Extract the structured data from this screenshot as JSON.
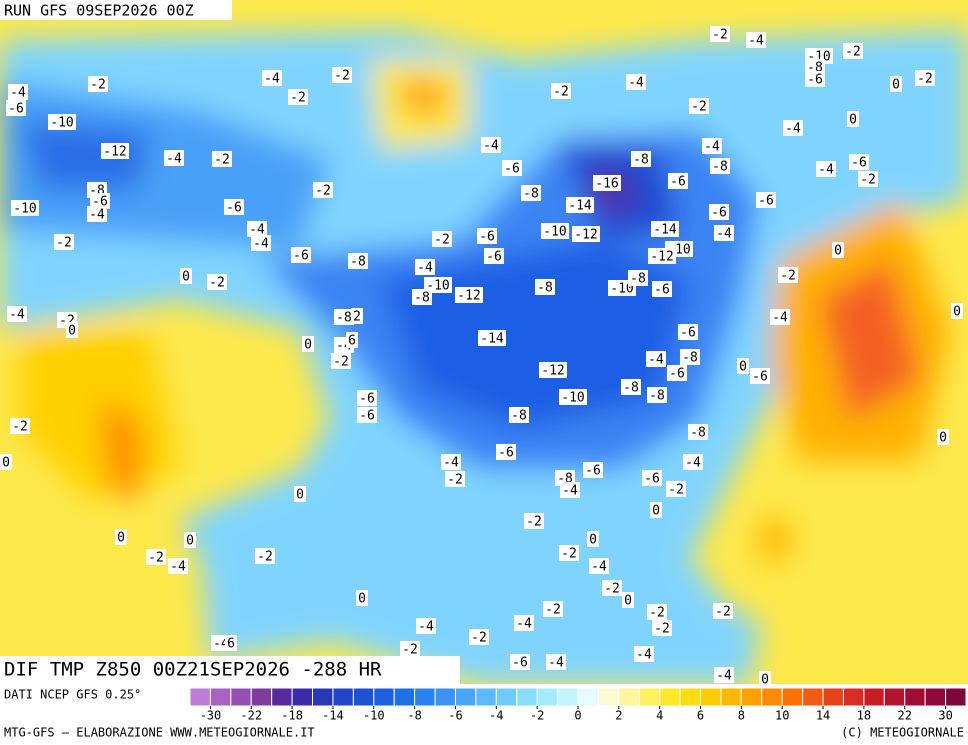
{
  "header": {
    "run": "RUN GFS 09SEP2026 00Z",
    "title": "DIF TMP Z850 00Z21SEP2026 -288 HR"
  },
  "footer": {
    "source": "DATI NCEP GFS 0.25°",
    "credit": "MTG-GFS – ELABORAZIONE WWW.METEOGIORNALE.IT",
    "copyright": "(C) METEOGIORNALE"
  },
  "colorbar": {
    "ticks": [
      -30,
      -22,
      -18,
      -14,
      -10,
      -8,
      -6,
      -4,
      -2,
      0,
      2,
      4,
      6,
      8,
      10,
      14,
      18,
      22,
      30
    ],
    "colors": [
      "#c07ad8",
      "#a862c4",
      "#9450b0",
      "#7e3c9c",
      "#5a2a9a",
      "#3a2ca8",
      "#2a36b8",
      "#2244c8",
      "#1c52d6",
      "#1a60e0",
      "#1e70ea",
      "#2a82f2",
      "#3a94f8",
      "#4aa6fc",
      "#5cb8ff",
      "#70caff",
      "#88dcff",
      "#a2ecff",
      "#c2f6ff",
      "#e4fcff",
      "#fffbd0",
      "#fff59a",
      "#fff060",
      "#ffe828",
      "#ffdc10",
      "#ffcc00",
      "#ffb800",
      "#ffa200",
      "#ff8a00",
      "#ff7000",
      "#f45a10",
      "#e84218",
      "#da2c20",
      "#c81c28",
      "#b41430",
      "#a00c34",
      "#8e0838",
      "#7c063a"
    ]
  },
  "map_labels": [
    -4,
    -6,
    -2,
    -4,
    -2,
    -2,
    -10,
    -12,
    -4,
    -2,
    -8,
    -6,
    -4,
    -10,
    -2,
    -6,
    -4,
    -4,
    -2,
    0,
    -2,
    -4,
    -2,
    0,
    -6,
    -8,
    -4,
    -10,
    -8,
    -12,
    -8,
    -10,
    -8,
    -6,
    -8,
    2,
    0,
    -4,
    6,
    -2,
    -14,
    -6,
    -4,
    -8,
    -6,
    0,
    -6,
    -12,
    -8,
    -8,
    -10,
    -8,
    -6,
    -6,
    -2,
    0,
    -4,
    -2,
    -6,
    -8,
    -6,
    -4,
    -6,
    -2,
    -8,
    -4,
    0,
    -2,
    0,
    0,
    -2,
    -4,
    0,
    -2,
    -2,
    0,
    -4,
    -2,
    0,
    -2,
    0,
    -2,
    -2,
    -2,
    -4,
    -2,
    -4,
    -2,
    -4,
    -6,
    -4,
    -4,
    0,
    -4,
    6,
    -4,
    -2,
    -2,
    -4,
    -6,
    -8,
    -14,
    -16,
    -8,
    -6,
    -4,
    -8,
    -6,
    -6,
    -4,
    -14,
    -10,
    -12,
    -10,
    -12,
    -6,
    -6,
    -2,
    -2,
    -4,
    -10,
    -2,
    -8,
    -6,
    0,
    -2,
    0,
    -4,
    -4,
    -6,
    -2,
    0,
    -2,
    -4,
    0,
    0
  ]
}
